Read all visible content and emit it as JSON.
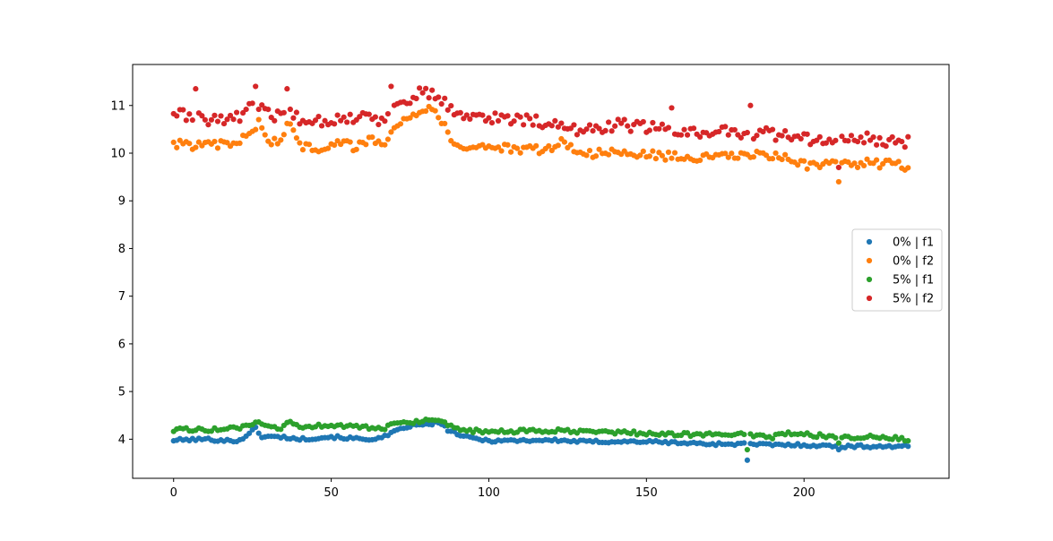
{
  "chart_data": {
    "type": "scatter",
    "title": "",
    "xlabel": "",
    "ylabel": "",
    "xlim": [
      -13,
      246
    ],
    "ylim": [
      3.18,
      11.86
    ],
    "xticks": [
      0,
      50,
      100,
      150,
      200
    ],
    "yticks": [
      4,
      5,
      6,
      7,
      8,
      9,
      10,
      11
    ],
    "x_tick_labels": [
      "0",
      "50",
      "100",
      "150",
      "200"
    ],
    "y_tick_labels": [
      "4",
      "5",
      "6",
      "7",
      "8",
      "9",
      "10",
      "11"
    ],
    "grid": false,
    "legend_position": "center-right",
    "n_points": 234,
    "series": [
      {
        "name": "0% | f1",
        "color": "#1f77b4",
        "anchors": [
          [
            0,
            3.98
          ],
          [
            10,
            4.0
          ],
          [
            20,
            3.96
          ],
          [
            24,
            4.1
          ],
          [
            26,
            4.25
          ],
          [
            28,
            4.05
          ],
          [
            34,
            4.05
          ],
          [
            40,
            4.0
          ],
          [
            50,
            4.05
          ],
          [
            60,
            4.0
          ],
          [
            66,
            4.02
          ],
          [
            70,
            4.15
          ],
          [
            75,
            4.28
          ],
          [
            80,
            4.3
          ],
          [
            84,
            4.35
          ],
          [
            87,
            4.2
          ],
          [
            92,
            4.05
          ],
          [
            100,
            3.97
          ],
          [
            120,
            3.98
          ],
          [
            130,
            3.95
          ],
          [
            140,
            3.95
          ],
          [
            150,
            3.95
          ],
          [
            170,
            3.9
          ],
          [
            180,
            3.9
          ],
          [
            190,
            3.88
          ],
          [
            200,
            3.88
          ],
          [
            210,
            3.85
          ],
          [
            220,
            3.85
          ],
          [
            233,
            3.85
          ]
        ],
        "outliers": [
          [
            182,
            3.56
          ],
          [
            211,
            3.78
          ]
        ]
      },
      {
        "name": "0% | f2",
        "color": "#ff7f0e",
        "anchors": [
          [
            0,
            10.2
          ],
          [
            10,
            10.15
          ],
          [
            20,
            10.2
          ],
          [
            25,
            10.45
          ],
          [
            27,
            10.7
          ],
          [
            30,
            10.2
          ],
          [
            34,
            10.3
          ],
          [
            37,
            10.65
          ],
          [
            40,
            10.15
          ],
          [
            48,
            10.1
          ],
          [
            52,
            10.3
          ],
          [
            58,
            10.1
          ],
          [
            62,
            10.3
          ],
          [
            66,
            10.15
          ],
          [
            70,
            10.6
          ],
          [
            75,
            10.8
          ],
          [
            80,
            10.9
          ],
          [
            82,
            11.0
          ],
          [
            84,
            10.8
          ],
          [
            87,
            10.4
          ],
          [
            90,
            10.15
          ],
          [
            100,
            10.15
          ],
          [
            110,
            10.05
          ],
          [
            120,
            10.1
          ],
          [
            124,
            10.2
          ],
          [
            130,
            10.0
          ],
          [
            140,
            10.0
          ],
          [
            150,
            9.97
          ],
          [
            160,
            9.92
          ],
          [
            170,
            9.9
          ],
          [
            180,
            9.95
          ],
          [
            190,
            9.95
          ],
          [
            195,
            9.9
          ],
          [
            200,
            9.75
          ],
          [
            210,
            9.75
          ],
          [
            220,
            9.8
          ],
          [
            233,
            9.73
          ]
        ],
        "outliers": [
          [
            211,
            9.4
          ],
          [
            123,
            10.3
          ]
        ]
      },
      {
        "name": "5% | f1",
        "color": "#2ca02c",
        "anchors": [
          [
            0,
            4.2
          ],
          [
            10,
            4.2
          ],
          [
            20,
            4.22
          ],
          [
            26,
            4.35
          ],
          [
            30,
            4.25
          ],
          [
            34,
            4.2
          ],
          [
            37,
            4.38
          ],
          [
            40,
            4.25
          ],
          [
            50,
            4.3
          ],
          [
            60,
            4.25
          ],
          [
            66,
            4.2
          ],
          [
            70,
            4.35
          ],
          [
            80,
            4.38
          ],
          [
            85,
            4.35
          ],
          [
            90,
            4.2
          ],
          [
            100,
            4.15
          ],
          [
            120,
            4.18
          ],
          [
            130,
            4.15
          ],
          [
            140,
            4.15
          ],
          [
            150,
            4.12
          ],
          [
            160,
            4.1
          ],
          [
            170,
            4.1
          ],
          [
            180,
            4.1
          ],
          [
            190,
            4.05
          ],
          [
            195,
            4.12
          ],
          [
            200,
            4.1
          ],
          [
            210,
            4.05
          ],
          [
            220,
            4.05
          ],
          [
            233,
            4.0
          ]
        ],
        "outliers": [
          [
            182,
            3.78
          ],
          [
            211,
            3.92
          ]
        ]
      },
      {
        "name": "5% | f2",
        "color": "#d62728",
        "anchors": [
          [
            0,
            10.85
          ],
          [
            10,
            10.7
          ],
          [
            20,
            10.75
          ],
          [
            26,
            11.0
          ],
          [
            30,
            10.8
          ],
          [
            34,
            10.75
          ],
          [
            36,
            11.0
          ],
          [
            40,
            10.7
          ],
          [
            50,
            10.7
          ],
          [
            60,
            10.75
          ],
          [
            66,
            10.7
          ],
          [
            70,
            11.0
          ],
          [
            75,
            11.1
          ],
          [
            80,
            11.35
          ],
          [
            84,
            11.1
          ],
          [
            88,
            10.95
          ],
          [
            95,
            10.75
          ],
          [
            100,
            10.75
          ],
          [
            110,
            10.7
          ],
          [
            120,
            10.65
          ],
          [
            125,
            10.45
          ],
          [
            130,
            10.5
          ],
          [
            140,
            10.6
          ],
          [
            150,
            10.55
          ],
          [
            160,
            10.45
          ],
          [
            170,
            10.45
          ],
          [
            180,
            10.45
          ],
          [
            190,
            10.4
          ],
          [
            200,
            10.3
          ],
          [
            210,
            10.25
          ],
          [
            220,
            10.3
          ],
          [
            233,
            10.25
          ]
        ],
        "outliers": [
          [
            7,
            11.35
          ],
          [
            26,
            11.4
          ],
          [
            36,
            11.35
          ],
          [
            69,
            11.4
          ],
          [
            158,
            10.95
          ],
          [
            183,
            11.0
          ],
          [
            211,
            9.7
          ]
        ]
      }
    ]
  }
}
